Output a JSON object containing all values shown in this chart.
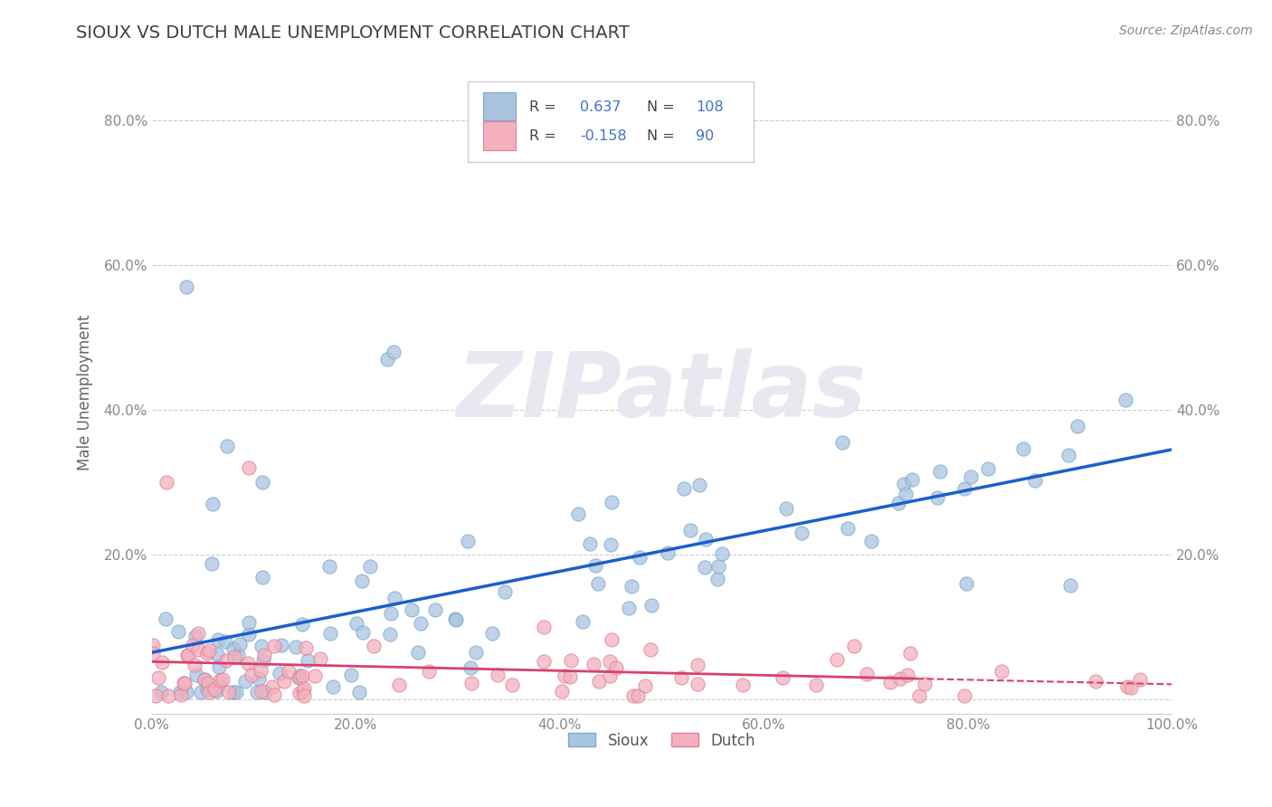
{
  "title": "SIOUX VS DUTCH MALE UNEMPLOYMENT CORRELATION CHART",
  "source": "Source: ZipAtlas.com",
  "xlabel": "",
  "ylabel": "Male Unemployment",
  "xlim": [
    0.0,
    1.0
  ],
  "ylim": [
    -0.02,
    0.87
  ],
  "xtick_labels": [
    "0.0%",
    "20.0%",
    "40.0%",
    "60.0%",
    "80.0%",
    "100.0%"
  ],
  "xtick_vals": [
    0.0,
    0.2,
    0.4,
    0.6,
    0.8,
    1.0
  ],
  "ytick_labels": [
    "",
    "20.0%",
    "40.0%",
    "60.0%",
    "80.0%"
  ],
  "ytick_vals": [
    0.0,
    0.2,
    0.4,
    0.6,
    0.8
  ],
  "sioux_R": 0.637,
  "sioux_N": 108,
  "dutch_R": -0.158,
  "dutch_N": 90,
  "sioux_color": "#aac4e0",
  "sioux_edge_color": "#7aaad0",
  "sioux_line_color": "#1a5fcc",
  "dutch_color": "#f4b0bc",
  "dutch_edge_color": "#e080a0",
  "dutch_line_color": "#d84070",
  "legend_color": "#4472c4",
  "title_color": "#404040",
  "watermark_text": "ZIPatlas",
  "watermark_color": "#e8e8f0",
  "grid_color": "#cccccc",
  "tick_color": "#888888",
  "spine_color": "#cccccc"
}
